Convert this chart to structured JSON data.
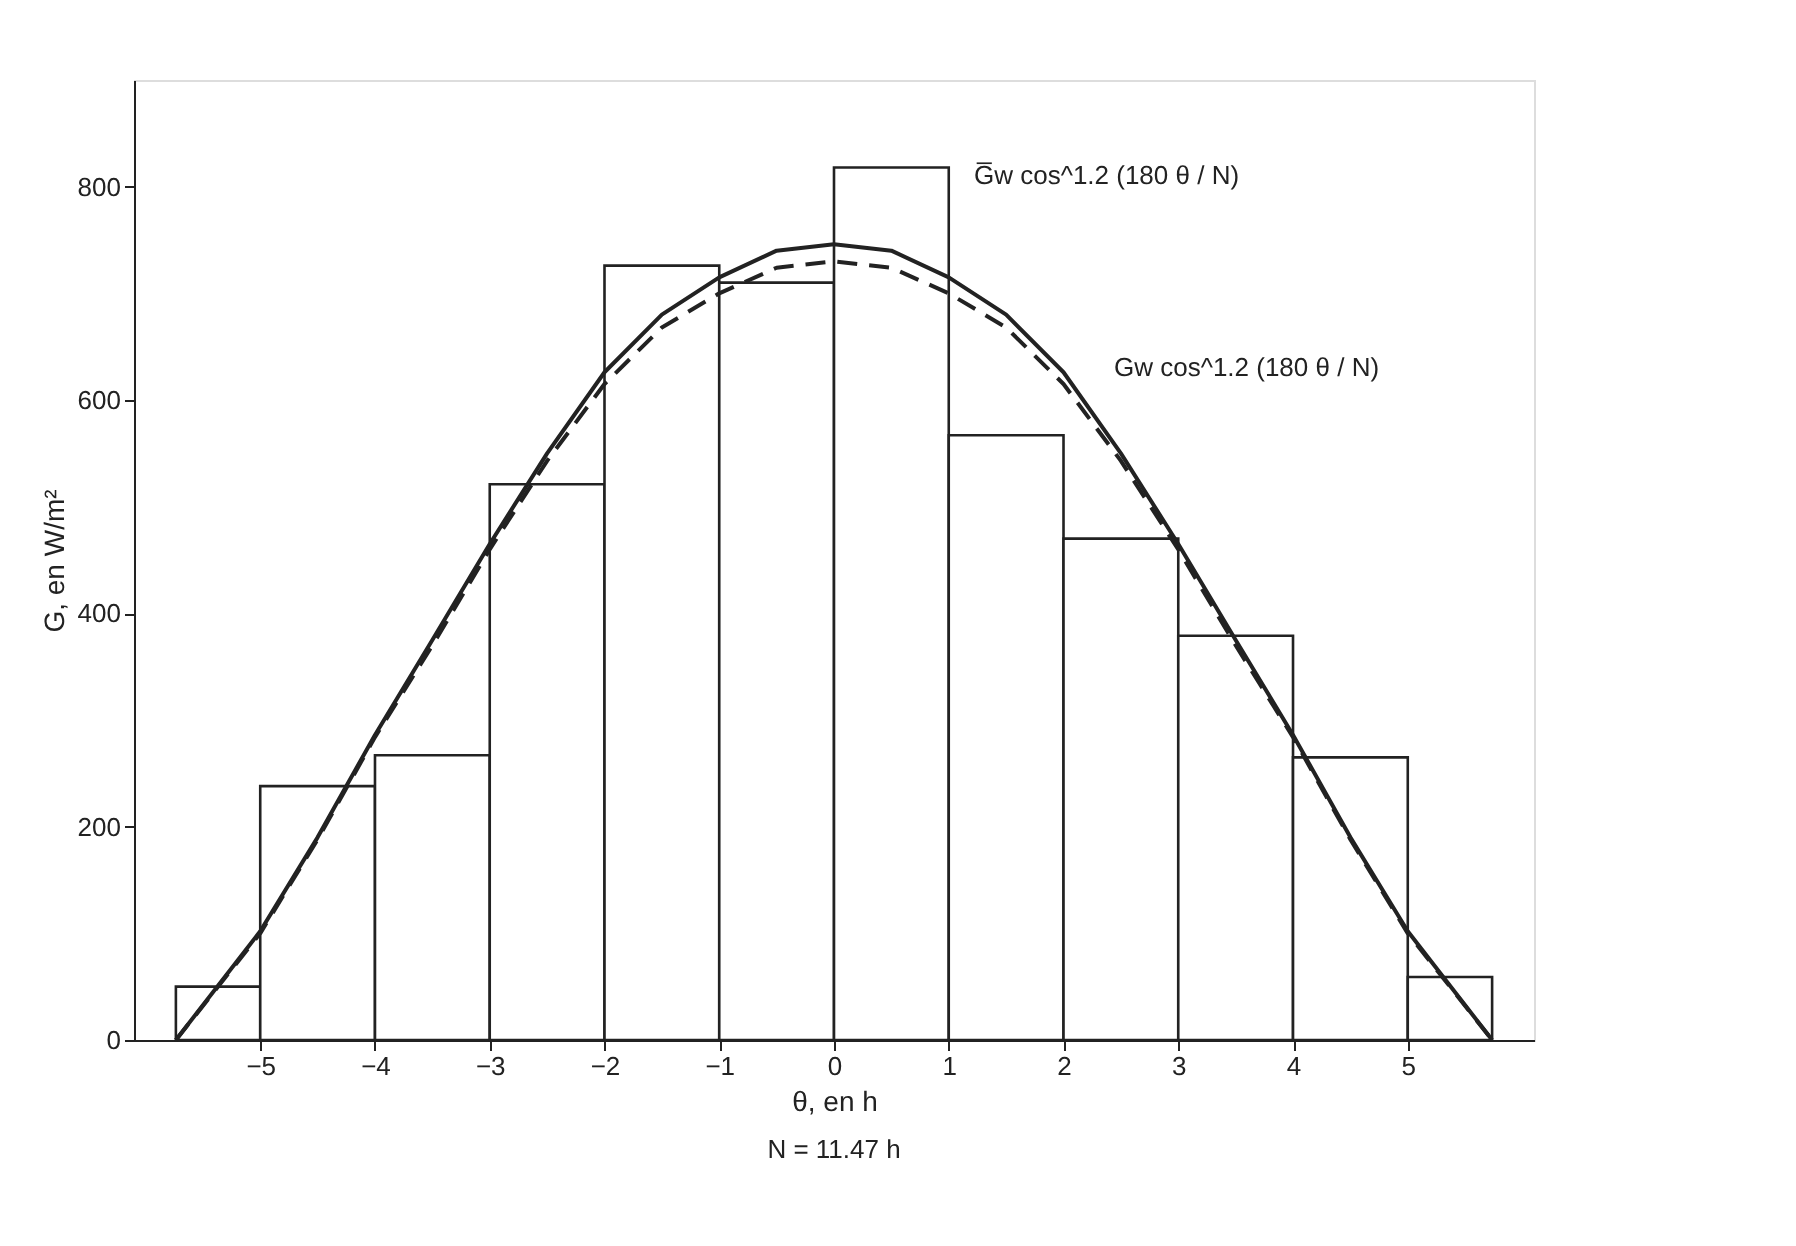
{
  "chart_data": {
    "type": "histogram",
    "xlabel": "θ, en h",
    "ylabel": "G, en W/m²",
    "bins": [
      -5.735,
      -5,
      -4,
      -3,
      -2,
      -1,
      0,
      1,
      2,
      3,
      4,
      5,
      5.735
    ],
    "values": [
      50,
      238,
      267,
      521,
      726,
      710,
      818,
      567,
      470,
      379,
      265,
      59
    ],
    "color": "#ffffff",
    "series": [
      {
        "type": "line",
        "line_style": "solid",
        "color": "#222222",
        "x": [
          -5.735,
          -5,
          -4.5,
          -4,
          -3.5,
          -3,
          -2.5,
          -2,
          -1.5,
          -1,
          -0.5,
          0,
          0.5,
          1,
          1.5,
          2,
          2.5,
          3,
          3.5,
          4,
          4.5,
          5,
          5.735
        ],
        "values": [
          0,
          102,
          190,
          286,
          375,
          465,
          550,
          626,
          680,
          715,
          740,
          746,
          740,
          715,
          680,
          626,
          550,
          465,
          375,
          286,
          190,
          102,
          0
        ]
      },
      {
        "type": "line",
        "line_style": "dashed",
        "color": "#222222",
        "x": [
          -5.735,
          -5,
          -4.5,
          -4,
          -3.5,
          -3,
          -2.5,
          -2,
          -1.5,
          -1,
          -0.5,
          0,
          0.5,
          1,
          1.5,
          2,
          2.5,
          3,
          3.5,
          4,
          4.5,
          5,
          5.735
        ],
        "values": [
          0,
          100,
          188,
          284,
          370,
          460,
          543,
          615,
          668,
          700,
          724,
          730,
          724,
          700,
          668,
          615,
          543,
          460,
          370,
          284,
          188,
          100,
          0
        ]
      }
    ],
    "xlim": [
      -6.1,
      6.1
    ],
    "xticks": [
      -5,
      -4,
      -3,
      -2,
      -1,
      0,
      1,
      2,
      3,
      4,
      5
    ],
    "ylim": [
      0,
      900
    ],
    "yticks": [
      0,
      200,
      400,
      600,
      800
    ],
    "grid": false,
    "marker": "none",
    "annotations": [
      "G̅w cos^1.2 (180 θ / N)",
      "Gw cos^1.2 (180 θ / N)",
      "N = 11.47 h"
    ]
  }
}
